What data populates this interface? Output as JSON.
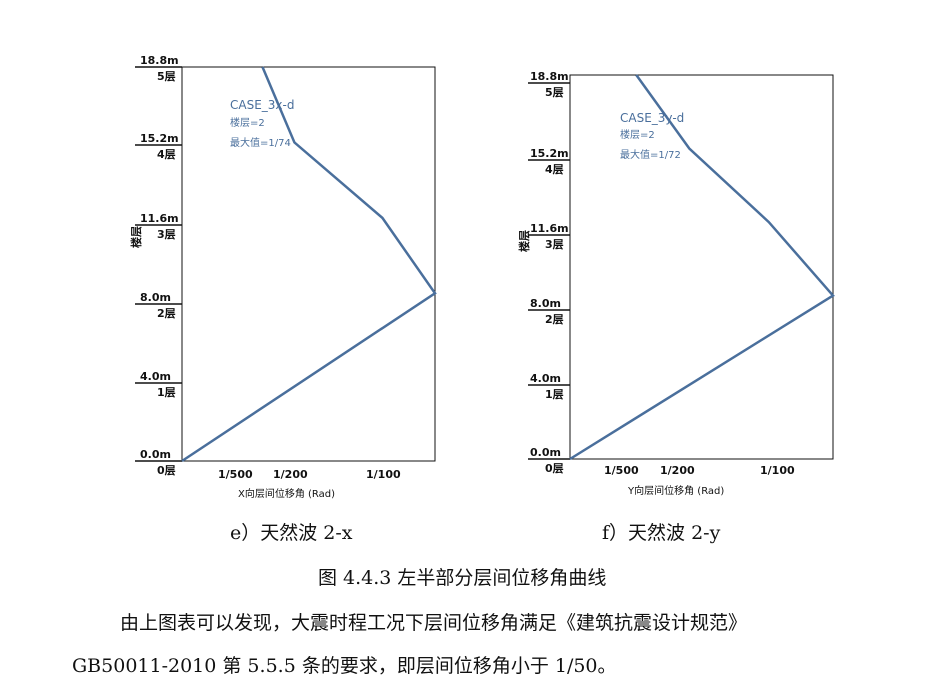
{
  "chart_data": [
    {
      "type": "line",
      "ylabel": "楼层",
      "xlabel": "X向层间位移角 (Rad)",
      "caption": "e）天然波 2-x",
      "x_ticks": [
        "1/500",
        "1/200",
        "1/100"
      ],
      "height_labels": [
        "18.8m",
        "15.2m",
        "11.6m",
        "8.0m",
        "4.0m",
        "0.0m"
      ],
      "floor_labels": [
        "5层",
        "4层",
        "3层",
        "2层",
        "1层",
        "0层"
      ],
      "legend": {
        "name": "CASE_3x-d",
        "floor": "楼层=2",
        "max": "最大值=1/74"
      },
      "series": [
        {
          "name": "CASE_3x-d",
          "drift": [
            0,
            0.01351,
            0.0107,
            0.006,
            0.0043
          ]
        }
      ],
      "heights": [
        0.0,
        8.0,
        11.6,
        15.2,
        18.8
      ]
    },
    {
      "type": "line",
      "ylabel": "楼层",
      "xlabel": "Y向层间位移角 (Rad)",
      "caption": "f）天然波 2-y",
      "x_ticks": [
        "1/500",
        "1/200",
        "1/100"
      ],
      "height_labels": [
        "18.8m",
        "15.2m",
        "11.6m",
        "8.0m",
        "4.0m",
        "0.0m"
      ],
      "floor_labels": [
        "5层",
        "4层",
        "3层",
        "2层",
        "1层",
        "0层"
      ],
      "legend": {
        "name": "CASE_3y-d",
        "floor": "楼层=2",
        "max": "最大值=1/72"
      },
      "series": [
        {
          "name": "CASE_3y-d",
          "drift": [
            0,
            0.01389,
            0.0105,
            0.0063,
            0.0035
          ]
        }
      ],
      "heights": [
        0.0,
        8.0,
        11.6,
        15.2,
        18.8
      ]
    }
  ],
  "figure_caption": "图 4.4.3  左半部分层间位移角曲线",
  "paragraph": {
    "line1": "由上图表可以发现，大震时程工况下层间位移角满足《建筑抗震设计规范》",
    "line2": "GB50011-2010 第 5.5.5 条的要求，即层间位移角小于 1/50。"
  }
}
